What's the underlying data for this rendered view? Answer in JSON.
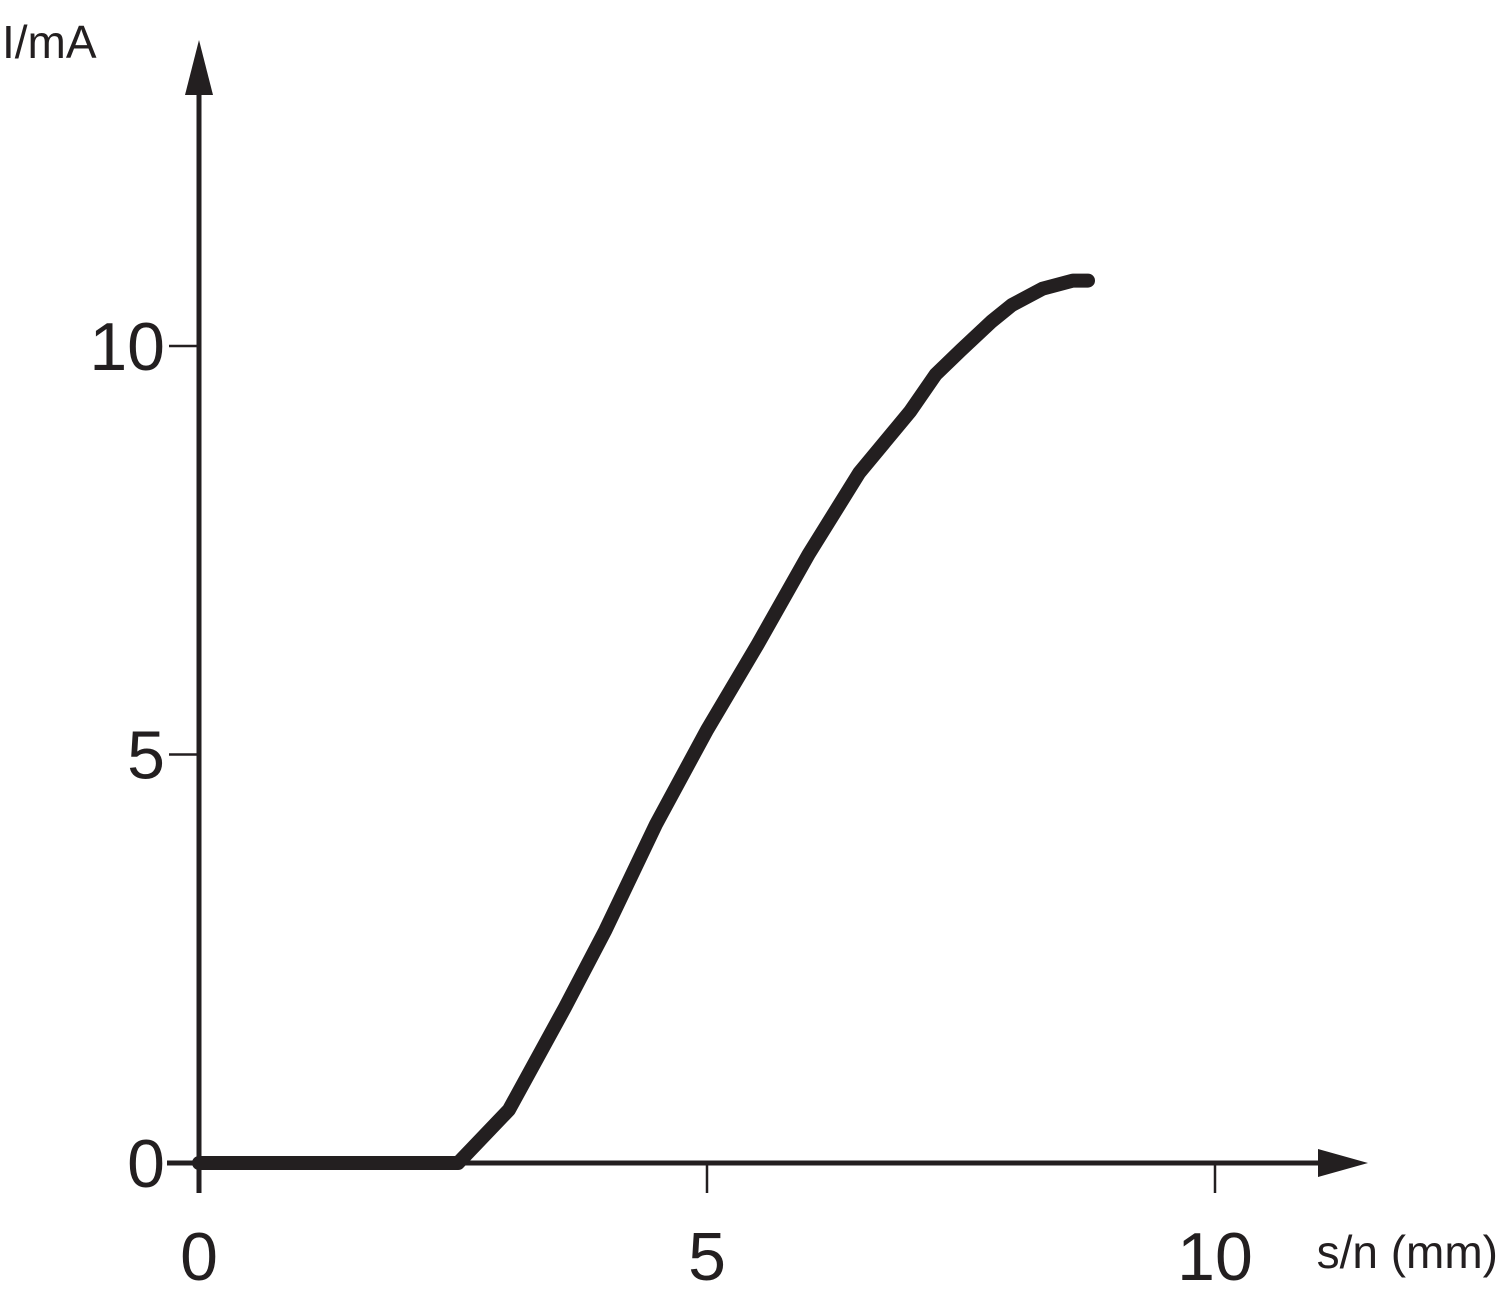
{
  "chart_data": {
    "type": "line",
    "title": "",
    "xlabel": "s/n (mm)",
    "ylabel": "I/mA",
    "xlim": [
      0,
      11.4
    ],
    "ylim": [
      0,
      13.8
    ],
    "xticks": [
      0,
      5,
      10
    ],
    "yticks": [
      0,
      5,
      10
    ],
    "x_tick_labels": [
      "0",
      "5",
      "10"
    ],
    "y_tick_labels": [
      "0",
      "5",
      "10"
    ],
    "grid": false,
    "legend": "none",
    "series": [
      {
        "x": [
          0,
          2.55,
          3.05,
          3.6,
          4.0,
          4.5,
          5.0,
          5.5,
          6.0,
          6.5,
          7.0,
          7.25,
          7.5,
          7.8,
          8.0,
          8.3,
          8.6,
          8.75
        ],
        "y": [
          0,
          0,
          0.65,
          1.9,
          2.85,
          4.15,
          5.3,
          6.35,
          7.45,
          8.45,
          9.2,
          9.65,
          9.95,
          10.3,
          10.5,
          10.7,
          10.8,
          10.8
        ],
        "color": "#231f20"
      }
    ]
  }
}
